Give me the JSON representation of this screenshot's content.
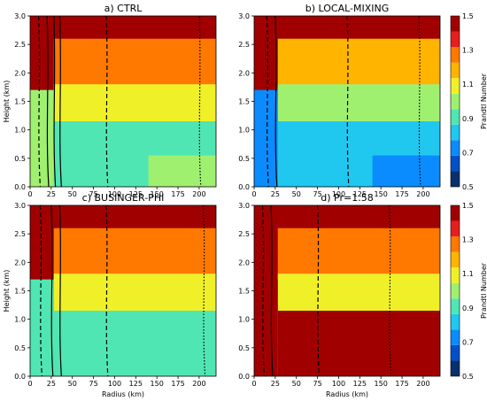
{
  "colors": {
    "levels": [
      "#08306b",
      "#0050c8",
      "#0a8cff",
      "#20c8f0",
      "#50e6b4",
      "#a0f070",
      "#f0f028",
      "#ffb400",
      "#ff7800",
      "#e61e1e",
      "#a00000"
    ],
    "boundary_bins": [
      0.5,
      0.6,
      0.7,
      0.8,
      0.9,
      1.0,
      1.1,
      1.2,
      1.3,
      1.4,
      1.5
    ]
  },
  "chart_data": [
    {
      "panel": "a",
      "type": "heatmap",
      "title": "a) CTRL",
      "xlabel": "",
      "ylabel": "Height (km)",
      "xlim": [
        0,
        220
      ],
      "ylim": [
        0,
        3.0
      ],
      "xticks": [
        "0",
        "25",
        "50",
        "75",
        "100",
        "125",
        "150",
        "175",
        "200"
      ],
      "yticks": [
        "0.0",
        "0.5",
        "1.0",
        "1.5",
        "2.0",
        "2.5",
        "3.0"
      ],
      "contours": {
        "solid_radius_km": [
          20,
          28,
          35
        ],
        "dashed_radius_km": [
          10,
          90
        ],
        "dotted_radius_km": [
          200
        ]
      },
      "layers": [
        {
          "zone": "surface-left",
          "value": 1.0
        },
        {
          "zone": "mid-boundary-layer",
          "value": 0.9
        },
        {
          "zone": "upper-boundary-layer",
          "value": 1.1
        },
        {
          "zone": "inflow-top",
          "value": 1.3
        },
        {
          "zone": "free-atmosphere",
          "value": 1.5
        }
      ]
    },
    {
      "panel": "b",
      "type": "heatmap",
      "title": "b) LOCAL-MIXING",
      "xlabel": "",
      "ylabel": "",
      "xlim": [
        0,
        220
      ],
      "ylim": [
        0,
        3.0
      ],
      "xticks": [
        "0",
        "25",
        "50",
        "75",
        "100",
        "125",
        "150",
        "175",
        "200"
      ],
      "yticks": [
        "0.0",
        "0.5",
        "1.0",
        "1.5",
        "2.0",
        "2.5",
        "3.0"
      ],
      "colorbar": {
        "label": "Prandtl Number",
        "ticks": [
          "0.5",
          "0.7",
          "0.9",
          "1.1",
          "1.3",
          "1.5"
        ]
      },
      "contours": {
        "solid_radius_km": [
          25
        ],
        "dashed_radius_km": [
          15,
          110
        ],
        "dotted_radius_km": [
          195
        ]
      },
      "layers": [
        {
          "zone": "surface-left",
          "value": 0.7
        },
        {
          "zone": "mid-boundary-layer",
          "value": 0.8
        },
        {
          "zone": "upper-boundary-layer",
          "value": 1.0
        },
        {
          "zone": "inflow-top",
          "value": 1.2
        },
        {
          "zone": "free-atmosphere",
          "value": 1.5
        }
      ]
    },
    {
      "panel": "c",
      "type": "heatmap",
      "title": "c) BUSINGER-PHI",
      "xlabel": "Radius (km)",
      "ylabel": "Height (km)",
      "xlim": [
        0,
        220
      ],
      "ylim": [
        0,
        3.0
      ],
      "xticks": [
        "0",
        "25",
        "50",
        "75",
        "100",
        "125",
        "150",
        "175",
        "200"
      ],
      "yticks": [
        "0.0",
        "0.5",
        "1.0",
        "1.5",
        "2.0",
        "2.5",
        "3.0"
      ],
      "contours": {
        "solid_radius_km": [
          25,
          35
        ],
        "dashed_radius_km": [
          12,
          90
        ],
        "dotted_radius_km": [
          205
        ]
      },
      "layers": [
        {
          "zone": "surface-left",
          "value": 0.9
        },
        {
          "zone": "mid-boundary-layer",
          "value": 0.9
        },
        {
          "zone": "upper-boundary-layer",
          "value": 1.1
        },
        {
          "zone": "inflow-top",
          "value": 1.3
        },
        {
          "zone": "free-atmosphere",
          "value": 1.5
        }
      ]
    },
    {
      "panel": "d",
      "type": "heatmap",
      "title": "d) Pr=1.58",
      "xlabel": "Radius (km)",
      "ylabel": "",
      "xlim": [
        0,
        220
      ],
      "ylim": [
        0,
        3.0
      ],
      "xticks": [
        "0",
        "25",
        "50",
        "75",
        "100",
        "125",
        "150",
        "175",
        "200"
      ],
      "yticks": [
        "0.0",
        "0.5",
        "1.0",
        "1.5",
        "2.0",
        "2.5",
        "3.0"
      ],
      "colorbar": {
        "label": "Prandtl Number",
        "ticks": [
          "0.5",
          "0.7",
          "0.9",
          "1.1",
          "1.3",
          "1.5"
        ]
      },
      "contours": {
        "solid_radius_km": [
          20
        ],
        "dashed_radius_km": [
          10,
          75
        ],
        "dotted_radius_km": [
          160
        ]
      },
      "layers": [
        {
          "zone": "surface-left",
          "value": 1.5
        },
        {
          "zone": "mid-boundary-layer",
          "value": 1.5
        },
        {
          "zone": "upper-boundary-layer",
          "value": 1.1
        },
        {
          "zone": "inflow-top",
          "value": 1.3
        },
        {
          "zone": "free-atmosphere",
          "value": 1.5
        }
      ]
    }
  ]
}
